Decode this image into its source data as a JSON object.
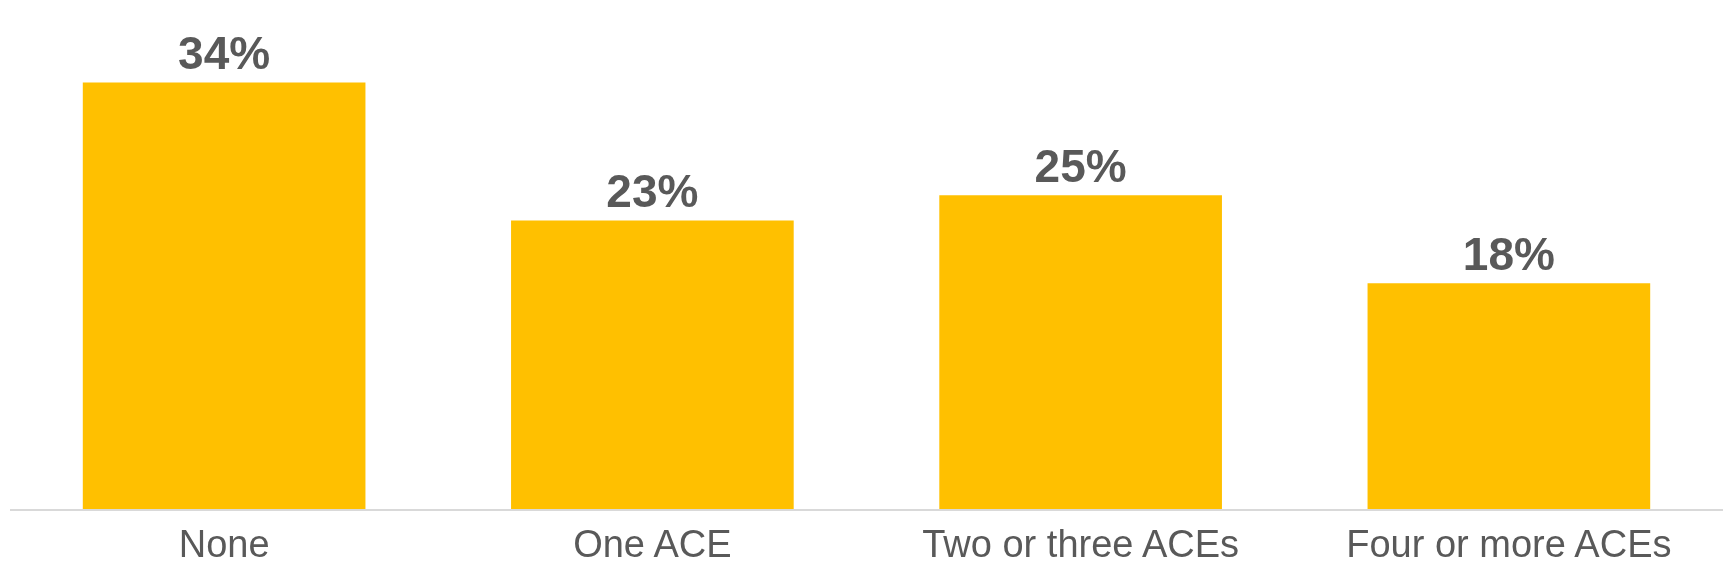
{
  "chart_data": {
    "type": "bar",
    "categories": [
      "None",
      "One ACE",
      "Two or three ACEs",
      "Four or more ACEs"
    ],
    "values": [
      34,
      23,
      25,
      18
    ],
    "value_labels": [
      "34%",
      "23%",
      "25%",
      "18%"
    ],
    "color": "#ffc000"
  }
}
